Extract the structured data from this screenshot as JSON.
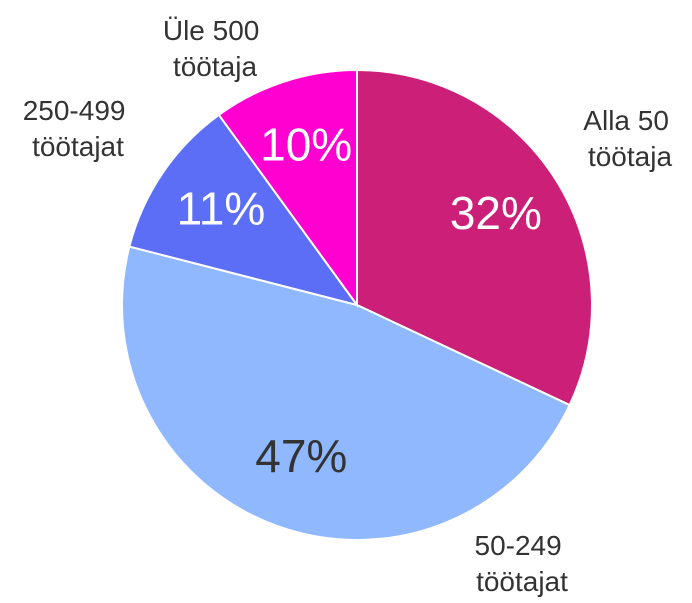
{
  "chart_data": {
    "type": "pie",
    "categories": [
      "Alla 50 töötaja",
      "50-249 töötajat",
      "250-499 töötajat",
      "Üle 500 töötaja"
    ],
    "values": [
      32,
      47,
      11,
      10
    ],
    "value_labels": [
      "32%",
      "47%",
      "11%",
      "10%"
    ],
    "colors": [
      "#cc1f78",
      "#8fb8ff",
      "#5b6ef5",
      "#ff00d0"
    ],
    "value_label_colors": [
      "#ffffff",
      "#333333",
      "#ffffff",
      "#ffffff"
    ]
  }
}
